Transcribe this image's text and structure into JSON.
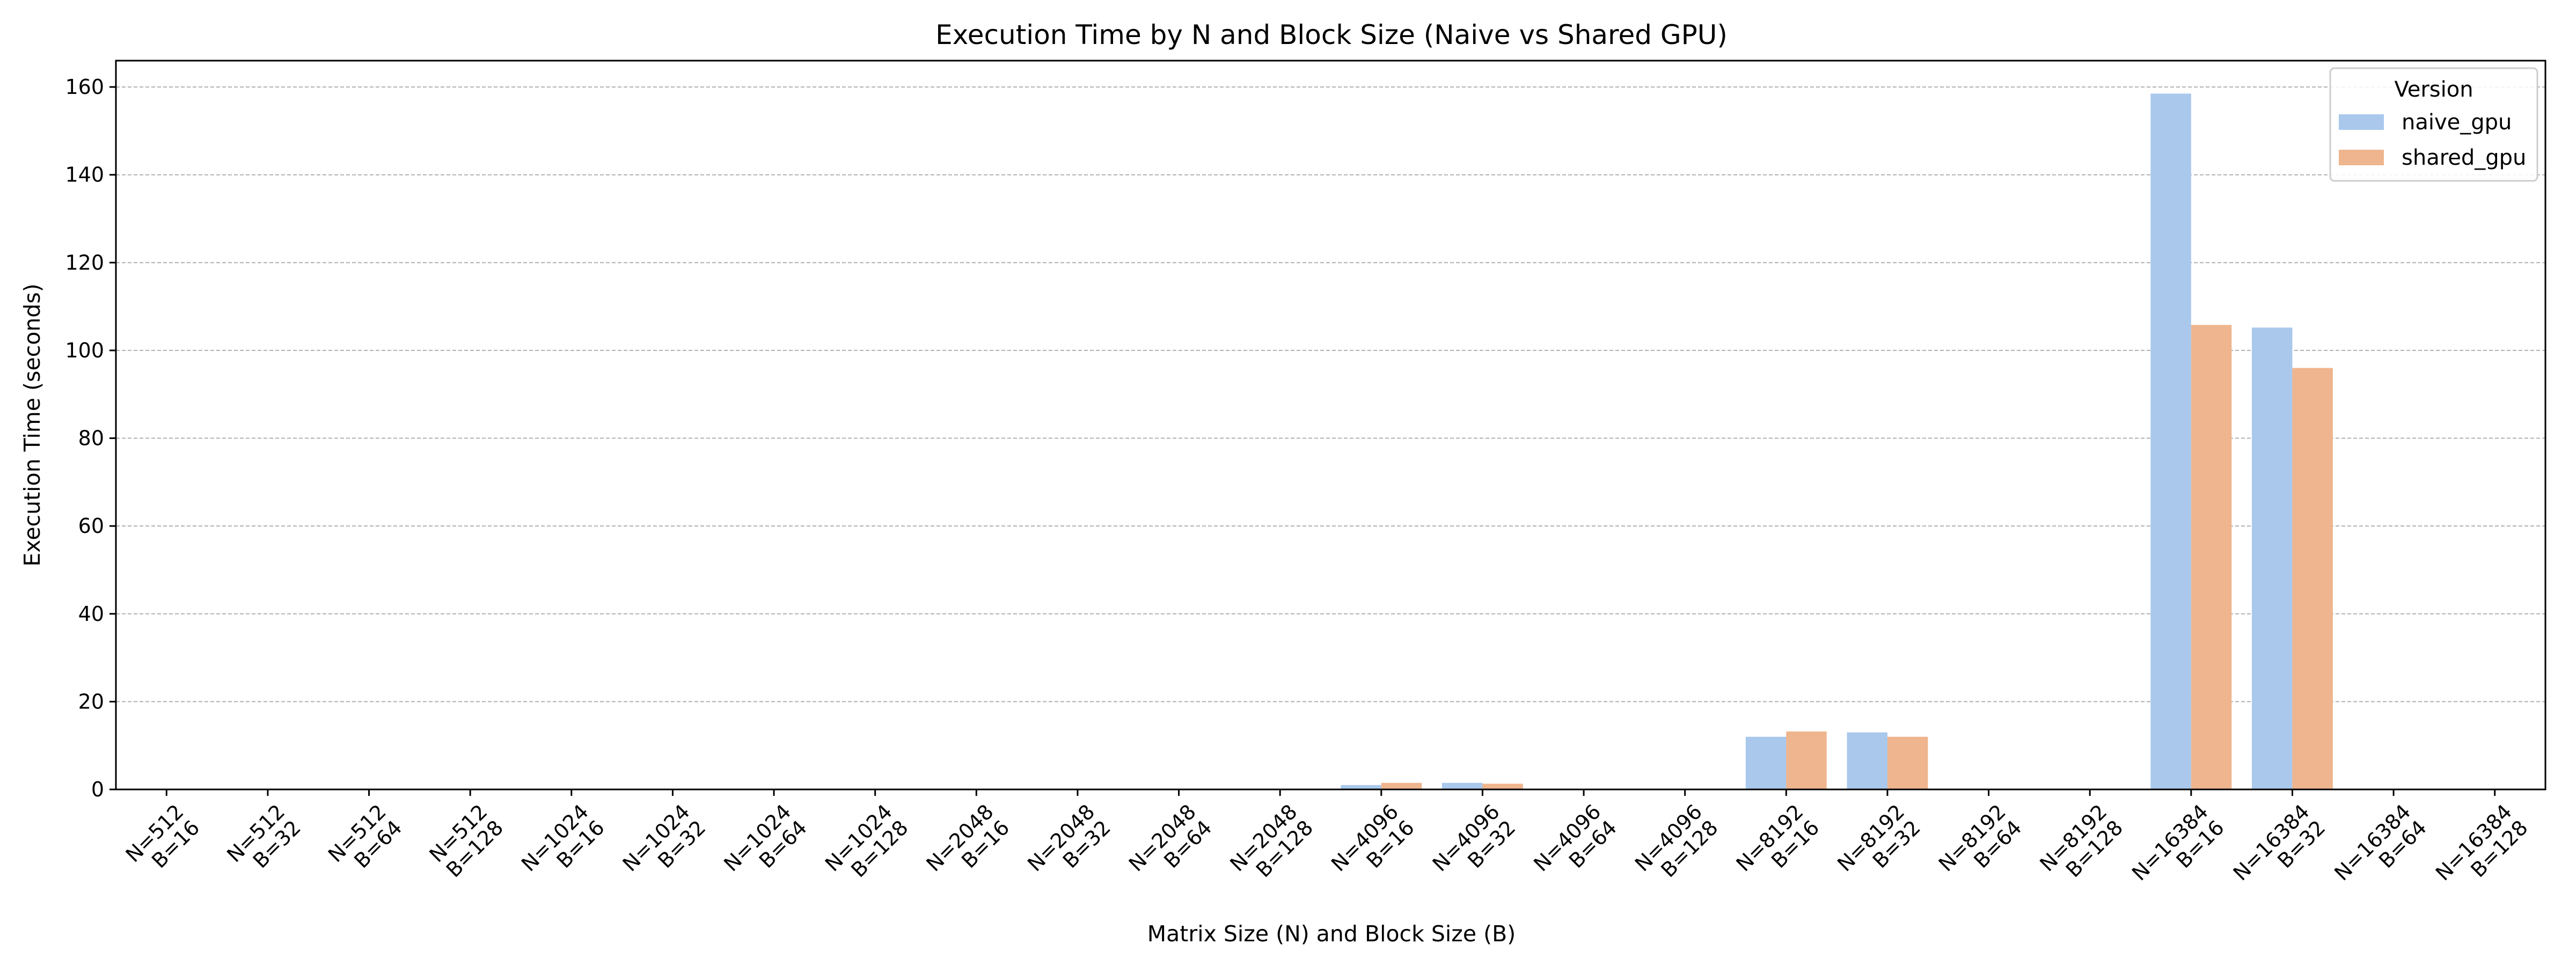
{
  "chart_data": {
    "type": "bar",
    "title": "Execution Time by N and Block Size (Naive vs Shared GPU)",
    "xlabel": "Matrix Size (N) and Block Size (B)",
    "ylabel": "Execution Time (seconds)",
    "ylim": [
      0,
      166
    ],
    "yticks": [
      0,
      20,
      40,
      60,
      80,
      100,
      120,
      140,
      160
    ],
    "grid": "y-dashed",
    "legend_title": "Version",
    "legend_position": "top-right",
    "categories": [
      [
        "N=512",
        "B=16"
      ],
      [
        "N=512",
        "B=32"
      ],
      [
        "N=512",
        "B=64"
      ],
      [
        "N=512",
        "B=128"
      ],
      [
        "N=1024",
        "B=16"
      ],
      [
        "N=1024",
        "B=32"
      ],
      [
        "N=1024",
        "B=64"
      ],
      [
        "N=1024",
        "B=128"
      ],
      [
        "N=2048",
        "B=16"
      ],
      [
        "N=2048",
        "B=32"
      ],
      [
        "N=2048",
        "B=64"
      ],
      [
        "N=2048",
        "B=128"
      ],
      [
        "N=4096",
        "B=16"
      ],
      [
        "N=4096",
        "B=32"
      ],
      [
        "N=4096",
        "B=64"
      ],
      [
        "N=4096",
        "B=128"
      ],
      [
        "N=8192",
        "B=16"
      ],
      [
        "N=8192",
        "B=32"
      ],
      [
        "N=8192",
        "B=64"
      ],
      [
        "N=8192",
        "B=128"
      ],
      [
        "N=16384",
        "B=16"
      ],
      [
        "N=16384",
        "B=32"
      ],
      [
        "N=16384",
        "B=64"
      ],
      [
        "N=16384",
        "B=128"
      ]
    ],
    "series": [
      {
        "name": "naive_gpu",
        "color": "#a9c8ec",
        "values": [
          0,
          0,
          0,
          0,
          0,
          0,
          0,
          0,
          0,
          0,
          0,
          0,
          1.0,
          1.5,
          0,
          0,
          12.0,
          13.0,
          0,
          0,
          158.5,
          105.2,
          0,
          0
        ]
      },
      {
        "name": "shared_gpu",
        "color": "#efb58e",
        "values": [
          0,
          0,
          0,
          0,
          0,
          0,
          0,
          0,
          0,
          0,
          0,
          0,
          1.5,
          1.3,
          0,
          0,
          13.2,
          12.0,
          0,
          0,
          105.8,
          96.0,
          0,
          0
        ]
      }
    ]
  }
}
